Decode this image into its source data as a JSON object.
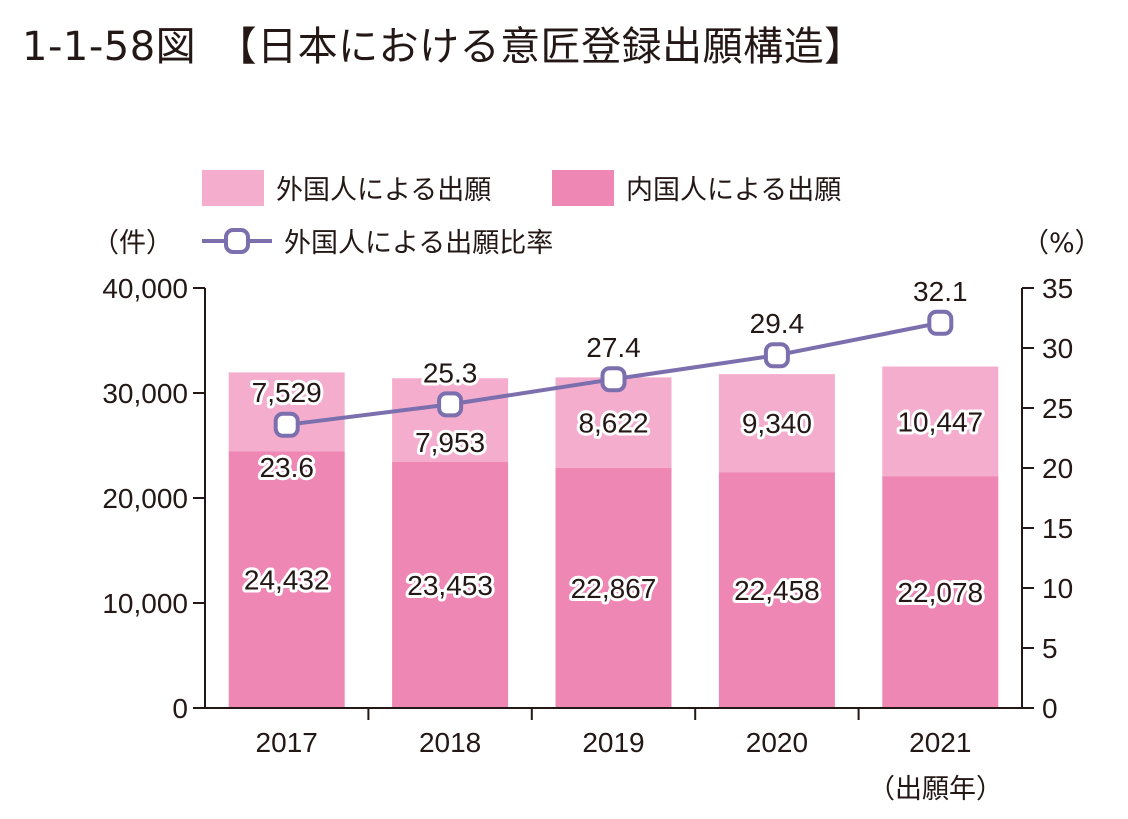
{
  "figure": {
    "title": "1-1-58図　【日本における意匠登録出願構造】"
  },
  "chart_data": {
    "type": "bar",
    "stacked": true,
    "categories": [
      "2017",
      "2018",
      "2019",
      "2020",
      "2021"
    ],
    "xlabel": "（出願年）",
    "ylabel": "（件）",
    "y2label": "（%）",
    "ylim": [
      0,
      40000
    ],
    "y2lim": [
      0,
      35
    ],
    "yticks": [
      "0",
      "10,000",
      "20,000",
      "30,000",
      "40,000"
    ],
    "y2ticks": [
      "0",
      "5",
      "10",
      "15",
      "20",
      "25",
      "30",
      "35"
    ],
    "legend_position": "top",
    "series": [
      {
        "name": "内国人による出願",
        "kind": "bar",
        "color": "#ee87b4",
        "values": [
          24432,
          23453,
          22867,
          22458,
          22078
        ],
        "labels": [
          "24,432",
          "23,453",
          "22,867",
          "22,458",
          "22,078"
        ]
      },
      {
        "name": "外国人による出願",
        "kind": "bar",
        "color": "#f5adce",
        "values": [
          7529,
          7953,
          8622,
          9340,
          10447
        ],
        "labels": [
          "7,529",
          "7,953",
          "8,622",
          "9,340",
          "10,447"
        ]
      },
      {
        "name": "外国人による出願比率",
        "kind": "line",
        "axis": "right",
        "color": "#7b6fad",
        "values": [
          23.6,
          25.3,
          27.4,
          29.4,
          32.1
        ],
        "labels": [
          "23.6",
          "25.3",
          "27.4",
          "29.4",
          "32.1"
        ]
      }
    ]
  }
}
